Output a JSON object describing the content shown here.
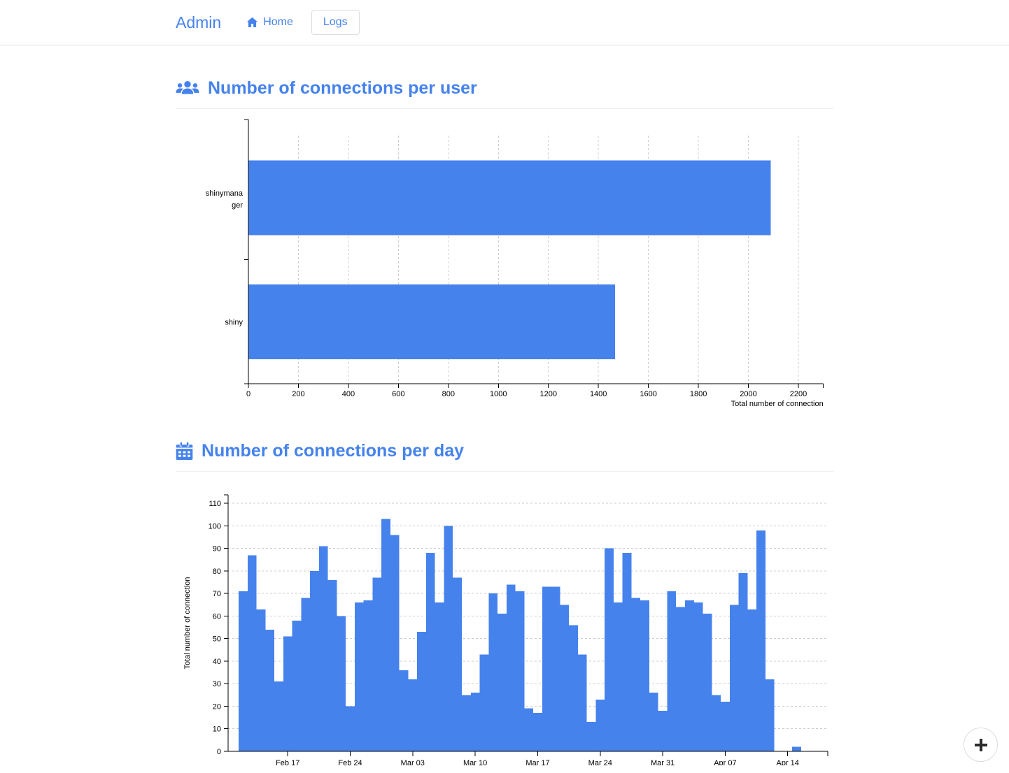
{
  "accent": "#4582ec",
  "navbar": {
    "brand": "Admin",
    "home": "Home",
    "logs": "Logs"
  },
  "sections": [
    {
      "id": "per-user",
      "title": "Number of connections per user",
      "icon": "users-icon"
    },
    {
      "id": "per-day",
      "title": "Number of connections per day",
      "icon": "calendar-icon"
    }
  ],
  "fab": {
    "icon": "plus"
  },
  "chart_data": [
    {
      "type": "bar",
      "orientation": "horizontal",
      "title": "Number of connections per user",
      "categories": [
        "shinymanager",
        "shiny"
      ],
      "values": [
        2090,
        1466
      ],
      "xlabel": "Total number of connection",
      "xticks": [
        0,
        200,
        400,
        600,
        800,
        1000,
        1200,
        1400,
        1600,
        1800,
        2000,
        2200
      ],
      "xlim": [
        0,
        2300
      ],
      "grid": "vertical-dashed",
      "legend": "none",
      "bar_color": "#4582ec"
    },
    {
      "type": "bar",
      "orientation": "vertical",
      "title": "Number of connections per day",
      "ylabel": "Total number of connection",
      "yticks": [
        0,
        10,
        20,
        30,
        40,
        50,
        60,
        70,
        80,
        90,
        100,
        110
      ],
      "ylim": [
        0,
        113
      ],
      "grid": "horizontal-dashed",
      "legend": "none",
      "bar_color": "#4582ec",
      "x": [
        "Feb 12",
        "Feb 13",
        "Feb 14",
        "Feb 15",
        "Feb 16",
        "Feb 17",
        "Feb 18",
        "Feb 19",
        "Feb 20",
        "Feb 21",
        "Feb 22",
        "Feb 23",
        "Feb 24",
        "Feb 25",
        "Feb 26",
        "Feb 27",
        "Feb 28",
        "Mar 01",
        "Mar 02",
        "Mar 03",
        "Mar 04",
        "Mar 05",
        "Mar 06",
        "Mar 07",
        "Mar 08",
        "Mar 09",
        "Mar 10",
        "Mar 11",
        "Mar 12",
        "Mar 13",
        "Mar 14",
        "Mar 15",
        "Mar 16",
        "Mar 17",
        "Mar 18",
        "Mar 19",
        "Mar 20",
        "Mar 21",
        "Mar 22",
        "Mar 23",
        "Mar 24",
        "Mar 25",
        "Mar 26",
        "Mar 27",
        "Mar 28",
        "Mar 29",
        "Mar 30",
        "Mar 31",
        "Apr 01",
        "Apr 02",
        "Apr 03",
        "Apr 04",
        "Apr 05",
        "Apr 06",
        "Apr 07",
        "Apr 08",
        "Apr 09",
        "Apr 10",
        "Apr 11",
        "Apr 12",
        "Apr 13",
        "Apr 14",
        "Apr 15"
      ],
      "values": [
        71,
        87,
        63,
        54,
        31,
        51,
        58,
        68,
        80,
        91,
        76,
        60,
        20,
        66,
        67,
        77,
        103,
        96,
        36,
        32,
        53,
        88,
        66,
        100,
        77,
        25,
        26,
        43,
        70,
        61,
        74,
        71,
        19,
        17,
        73,
        73,
        65,
        56,
        43,
        13,
        23,
        90,
        66,
        88,
        68,
        67,
        26,
        18,
        71,
        64,
        67,
        66,
        61,
        25,
        22,
        65,
        79,
        63,
        98,
        32,
        0,
        0,
        2
      ],
      "xtick_labels": [
        "Feb 17",
        "Feb 24",
        "Mar 03",
        "Mar 10",
        "Mar 17",
        "Mar 24",
        "Mar 31",
        "Apr 07",
        "Apr 14"
      ],
      "xtick_day_indices": [
        5,
        12,
        19,
        26,
        33,
        40,
        47,
        54,
        61
      ]
    }
  ]
}
